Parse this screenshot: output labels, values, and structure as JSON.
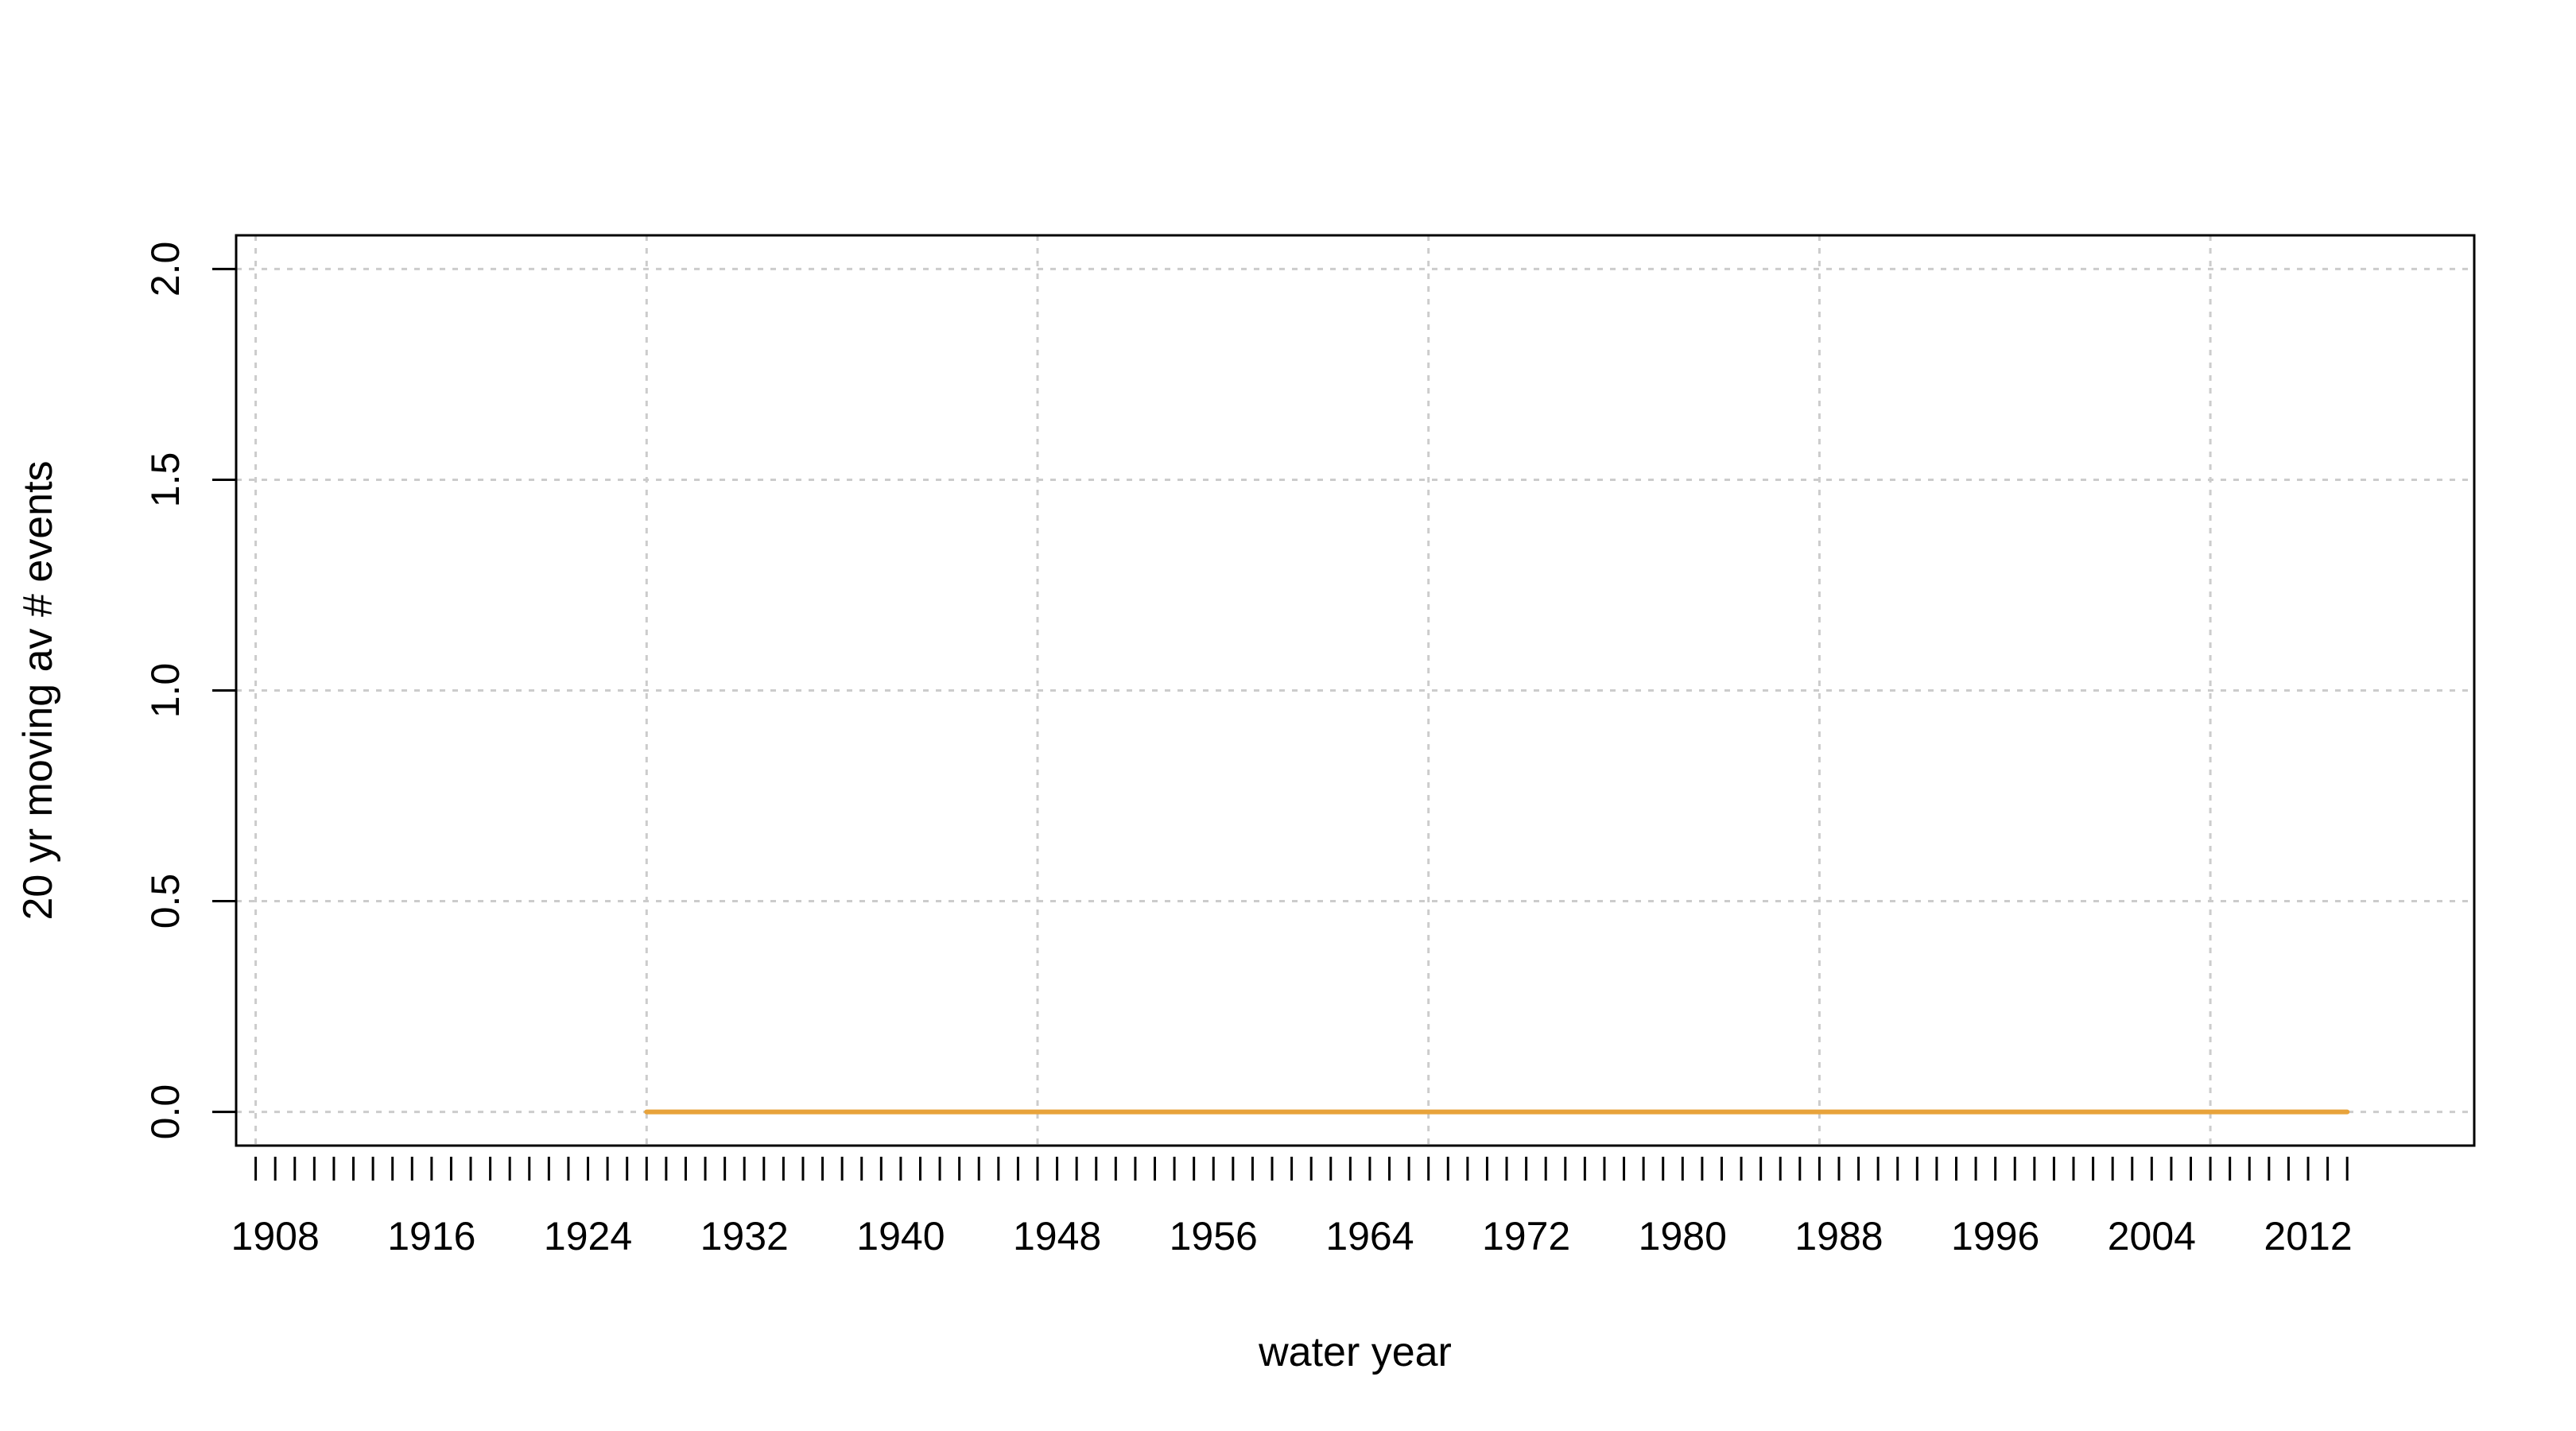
{
  "chart_data": {
    "type": "line",
    "title": "",
    "xlabel": "water year",
    "ylabel": "20 yr moving av # events",
    "xlim": [
      1906.0,
      2020.5
    ],
    "ylim": [
      -0.08,
      2.08
    ],
    "x_tick_labels": [
      "1908",
      "1916",
      "1924",
      "1932",
      "1940",
      "1948",
      "1956",
      "1964",
      "1972",
      "1980",
      "1988",
      "1996",
      "2004",
      "2012"
    ],
    "x_minor_tick_range": [
      1907,
      2014
    ],
    "y_tick_labels": [
      "0.0",
      "0.5",
      "1.0",
      "1.5",
      "2.0"
    ],
    "y_ticks": [
      0.0,
      0.5,
      1.0,
      1.5,
      2.0
    ],
    "grid_x": [
      1907,
      1927,
      1947,
      1967,
      1987,
      2007
    ],
    "grid_y": [
      0.0,
      0.5,
      1.0,
      1.5,
      2.0
    ],
    "grid": true,
    "series": [
      {
        "color": "#E8A33B",
        "x": [
          1927,
          2014
        ],
        "y": [
          0.0,
          0.0
        ]
      }
    ]
  }
}
